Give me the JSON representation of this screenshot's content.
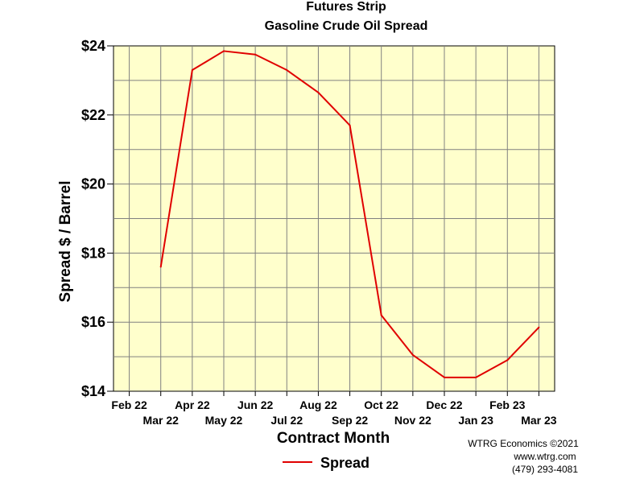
{
  "chart_data": {
    "type": "line",
    "title": "Futures Strip",
    "subtitle": "Gasoline Crude Oil Spread",
    "xlabel": "Contract Month",
    "ylabel": "Spread $ / Barrel",
    "categories": [
      "Feb 22",
      "Mar 22",
      "Apr 22",
      "May 22",
      "Jun 22",
      "Jul 22",
      "Aug 22",
      "Sep 22",
      "Oct 22",
      "Nov 22",
      "Dec 22",
      "Jan 23",
      "Feb 23",
      "Mar 23"
    ],
    "ylim": [
      14,
      24
    ],
    "yticks": [
      14,
      16,
      18,
      20,
      22,
      24
    ],
    "ytick_labels": [
      "$14",
      "$16",
      "$18",
      "$20",
      "$22",
      "$24"
    ],
    "series": [
      {
        "name": "Spread",
        "color": "#e00000",
        "values": [
          null,
          17.6,
          23.3,
          23.85,
          23.75,
          23.3,
          22.65,
          21.7,
          16.2,
          15.05,
          14.4,
          14.4,
          14.9,
          15.85
        ]
      }
    ],
    "grid": true,
    "background_color": "#ffffcc",
    "legend_position": "bottom",
    "credits": [
      "WTRG Economics ©2021",
      "www.wtrg.com",
      "(479) 293-4081"
    ]
  }
}
